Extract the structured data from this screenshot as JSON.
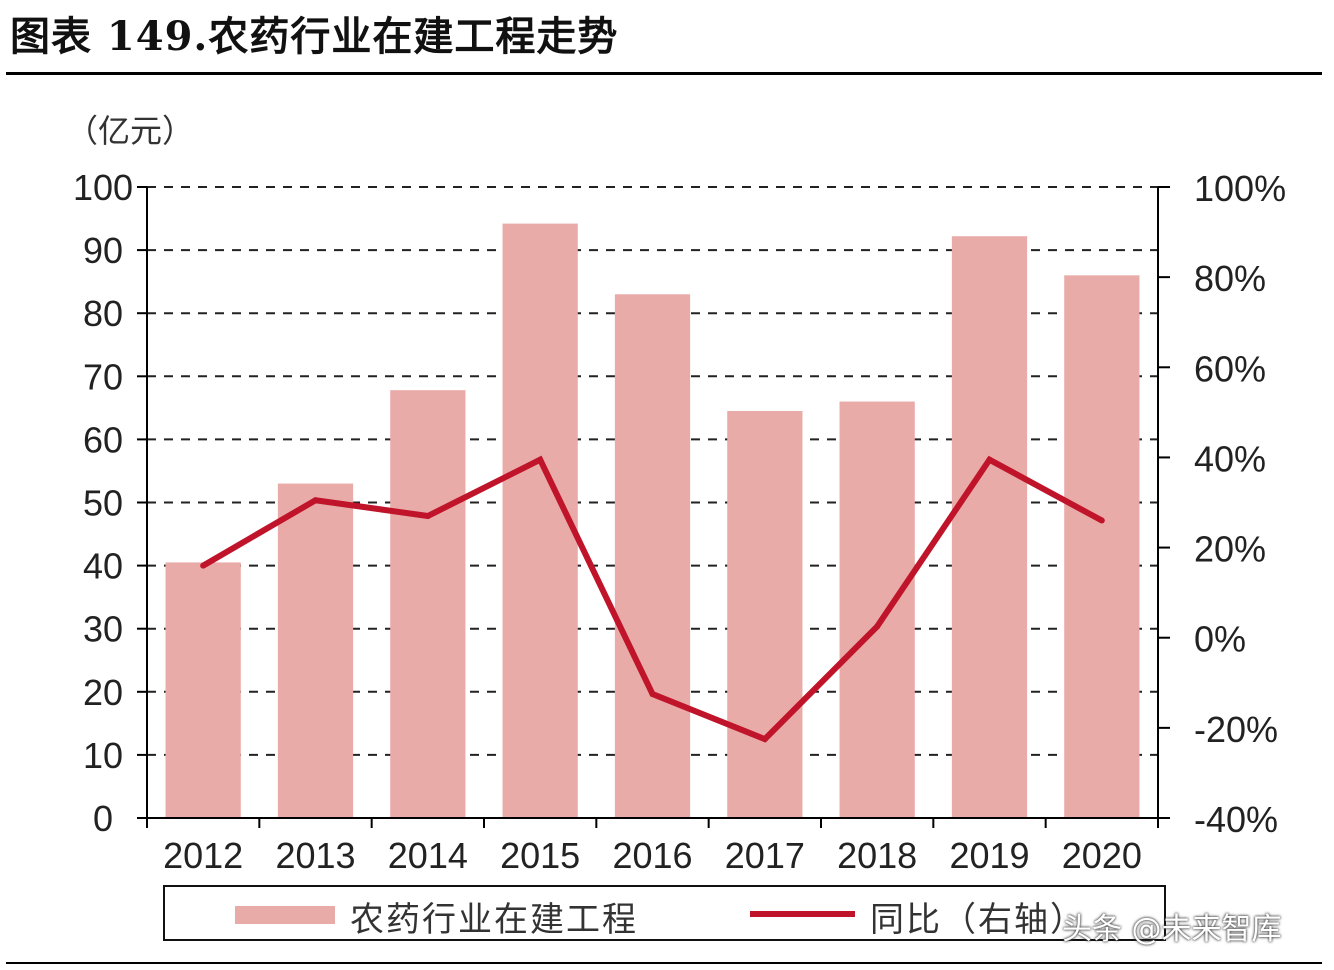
{
  "title": "图表 149.农药行业在建工程走势",
  "unit_label": "（亿元）",
  "watermark": "头条 @未来智库",
  "colors": {
    "bar": "#e9aba8",
    "line": "#c0142b",
    "axis": "#000000"
  },
  "chart_data": {
    "type": "bar",
    "categories": [
      "2012",
      "2013",
      "2014",
      "2015",
      "2016",
      "2017",
      "2018",
      "2019",
      "2020"
    ],
    "series": [
      {
        "name": "农药行业在建工程",
        "type": "bar",
        "axis": "left",
        "values": [
          40.5,
          53,
          67.8,
          94.2,
          83,
          64.5,
          66,
          92.2,
          86
        ]
      },
      {
        "name": "同比（右轴）",
        "type": "line",
        "axis": "right",
        "values": [
          0.16,
          0.305,
          0.27,
          0.395,
          -0.125,
          -0.225,
          0.025,
          0.395,
          0.26
        ]
      }
    ],
    "ylim_left": [
      0,
      100
    ],
    "yticks_left": [
      "0",
      "10",
      "20",
      "30",
      "40",
      "50",
      "60",
      "70",
      "80",
      "90",
      "100"
    ],
    "ylim_right": [
      -0.4,
      1.0
    ],
    "yticks_right": [
      "-40%",
      "-20%",
      "0%",
      "20%",
      "40%",
      "60%",
      "80%",
      "100%"
    ],
    "grid": true,
    "legend_position": "bottom"
  }
}
